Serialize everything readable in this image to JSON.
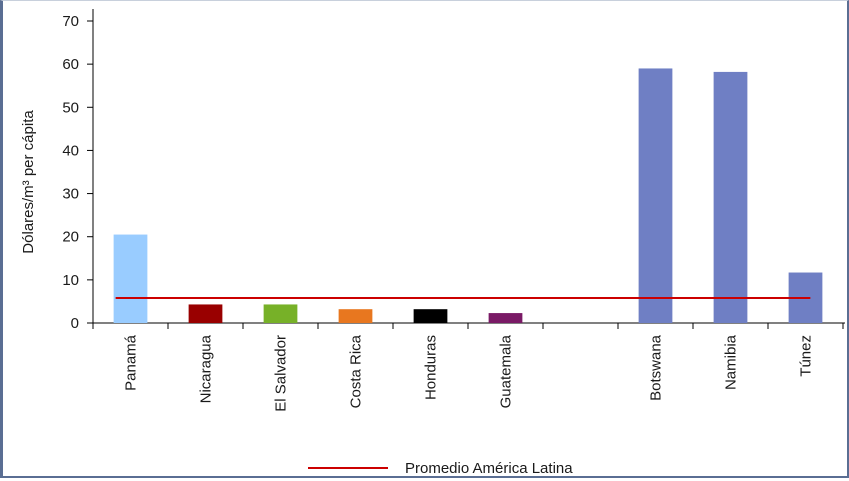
{
  "chart_data": {
    "type": "bar",
    "ylabel": "Dólares/m³ per cápita",
    "ylim": [
      0,
      70
    ],
    "yticks": [
      0,
      10,
      20,
      30,
      40,
      50,
      60,
      70
    ],
    "categories": [
      "Panamá",
      "Nicaragua",
      "El Salvador",
      "Costa Rica",
      "Honduras",
      "Guatemala",
      "",
      "Botswana",
      "Namibia",
      "Túnez"
    ],
    "values": [
      20.5,
      4.3,
      4.3,
      3.2,
      3.2,
      2.3,
      null,
      59,
      58.2,
      11.7
    ],
    "colors": [
      "#99ccff",
      "#990000",
      "#77b128",
      "#e8771f",
      "#000000",
      "#7a1a66",
      "#ffffff",
      "#6f7fc4",
      "#6f7fc4",
      "#6f7fc4"
    ],
    "reference_line": {
      "name": "Promedio América Latina",
      "value": 5.8,
      "color": "#cc0000"
    },
    "legend": {
      "position": "bottom"
    },
    "grid": false
  }
}
